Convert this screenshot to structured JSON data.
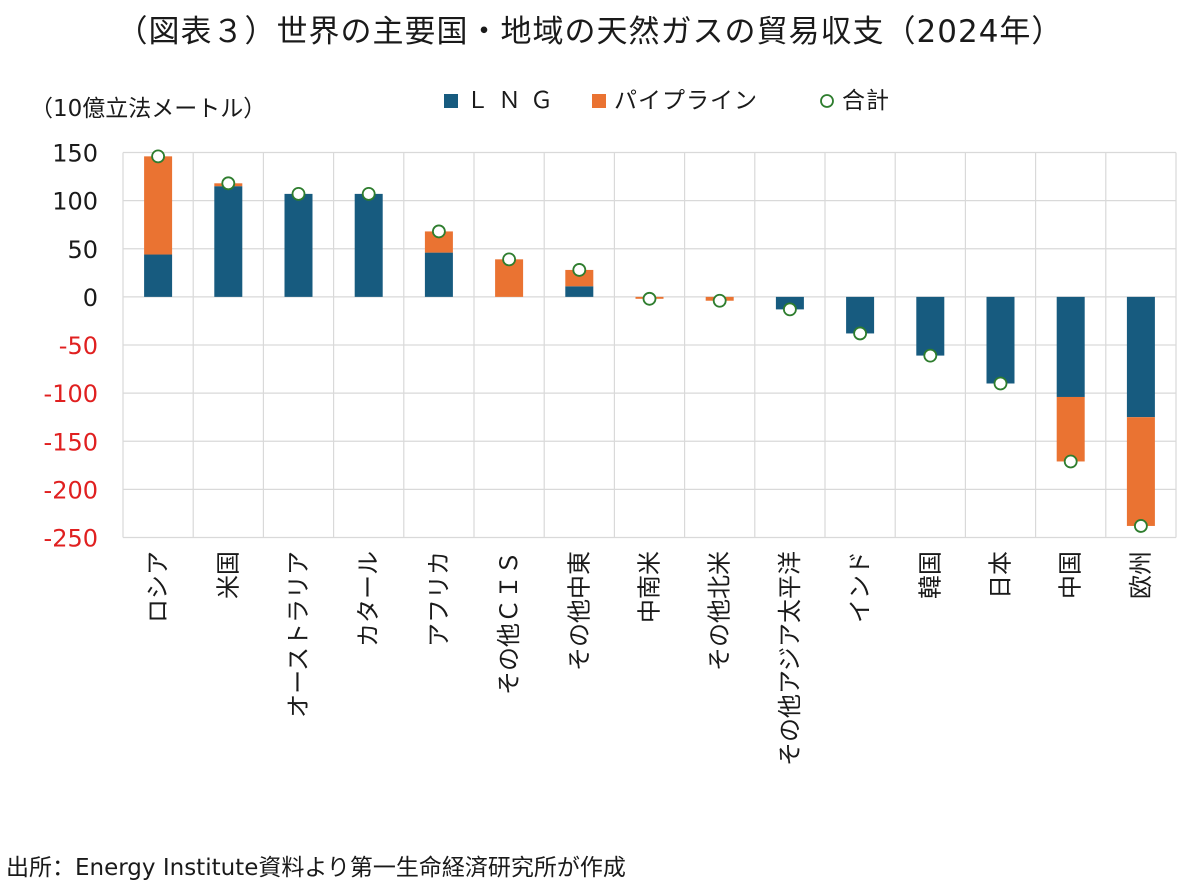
{
  "title": "（図表３）世界の主要国・地域の天然ガスの貿易収支（2024年）",
  "source": "出所：Energy Institute資料より第一生命経済研究所が作成",
  "colors": {
    "lng": "#175b7f",
    "pipeline": "#ea7332",
    "total_marker_stroke": "#2e7d2e",
    "negative_tick": "#e02020",
    "positive_tick": "#1a1a1a",
    "grid": "#d9d9d9"
  },
  "chart_data": {
    "type": "bar",
    "stacked": true,
    "unit_label": "（10億立法メートル）",
    "categories": [
      "ロシア",
      "米国",
      "オーストラリア",
      "カタール",
      "アフリカ",
      "その他ＣＩＳ",
      "その他中東",
      "中南米",
      "その他北米",
      "その他アジア太平洋",
      "インド",
      "韓国",
      "日本",
      "中国",
      "欧州"
    ],
    "series": [
      {
        "name": "ＬＮＧ",
        "type": "bar",
        "values": [
          44,
          115,
          107,
          107,
          46,
          0,
          11,
          0,
          0,
          -13,
          -38,
          -61,
          -90,
          -104,
          -125
        ]
      },
      {
        "name": "パイプライン",
        "type": "bar",
        "values": [
          102,
          3,
          0,
          0,
          22,
          39,
          17,
          -2,
          -4,
          0,
          0,
          0,
          0,
          -67,
          -113
        ]
      },
      {
        "name": "合計",
        "type": "marker",
        "values": [
          146,
          118,
          107,
          107,
          68,
          39,
          28,
          -2,
          -4,
          -13,
          -38,
          -61,
          -90,
          -171,
          -238
        ]
      }
    ],
    "ylim": [
      -250,
      150
    ],
    "yticks": [
      "150",
      "100",
      "50",
      "0",
      "-50",
      "-100",
      "-150",
      "-200",
      "-250"
    ],
    "ytick_values": [
      150,
      100,
      50,
      0,
      -50,
      -100,
      -150,
      -200,
      -250
    ],
    "grid": true,
    "legend_position": "top"
  }
}
